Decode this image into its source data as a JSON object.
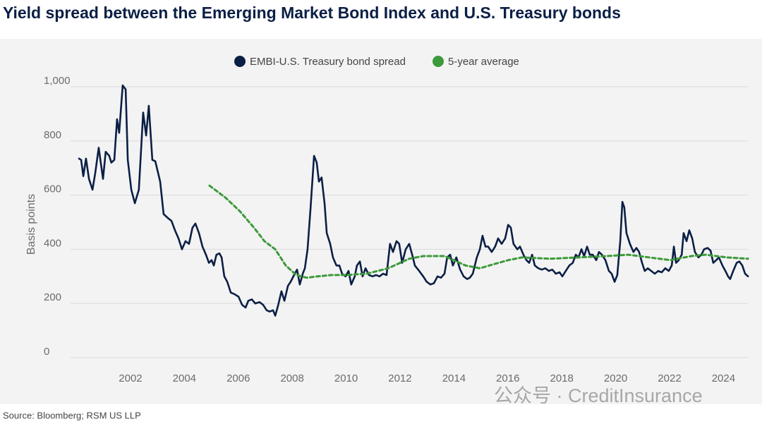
{
  "chart_data": {
    "type": "line",
    "title": "Yield spread between the Emerging Market Bond Index and U.S. Treasury bonds",
    "y_label": "Basis points",
    "source": "Source: Bloomberg; RSM US LLP",
    "watermark": "公众号 · CreditInsurance",
    "xlim": [
      1999.75,
      2025
    ],
    "xticks": [
      2002,
      2004,
      2006,
      2008,
      2010,
      2012,
      2014,
      2016,
      2018,
      2020,
      2022,
      2024
    ],
    "ylim": [
      0,
      1000
    ],
    "yticks": [
      0,
      200,
      400,
      600,
      800,
      {
        "value": 1000,
        "label": "1,000"
      }
    ],
    "grid": true,
    "legend": "top",
    "series": [
      {
        "name": "EMBI-U.S. Treasury bond spread",
        "color": "#0b1f45",
        "style": "solid",
        "x": [
          2000.09,
          2000.17,
          2000.25,
          2000.35,
          2000.46,
          2000.59,
          2000.69,
          2000.82,
          2000.98,
          2001.08,
          2001.21,
          2001.29,
          2001.4,
          2001.5,
          2001.58,
          2001.71,
          2001.82,
          2001.9,
          2002.03,
          2002.16,
          2002.31,
          2002.47,
          2002.58,
          2002.68,
          2002.81,
          2002.92,
          2003.1,
          2003.23,
          2003.39,
          2003.52,
          2003.65,
          2003.78,
          2003.91,
          2004.04,
          2004.17,
          2004.3,
          2004.41,
          2004.54,
          2004.67,
          2004.8,
          2004.91,
          2005.01,
          2005.09,
          2005.19,
          2005.3,
          2005.38,
          2005.48,
          2005.59,
          2005.72,
          2005.85,
          2006.01,
          2006.14,
          2006.27,
          2006.37,
          2006.5,
          2006.63,
          2006.79,
          2006.92,
          2007.05,
          2007.16,
          2007.29,
          2007.37,
          2007.47,
          2007.6,
          2007.71,
          2007.84,
          2007.94,
          2008.07,
          2008.18,
          2008.28,
          2008.39,
          2008.47,
          2008.57,
          2008.68,
          2008.81,
          2008.91,
          2008.99,
          2009.09,
          2009.2,
          2009.28,
          2009.41,
          2009.51,
          2009.64,
          2009.75,
          2009.85,
          2009.98,
          2010.09,
          2010.19,
          2010.32,
          2010.4,
          2010.51,
          2010.61,
          2010.72,
          2010.85,
          2010.98,
          2011.11,
          2011.24,
          2011.37,
          2011.5,
          2011.63,
          2011.74,
          2011.87,
          2011.97,
          2012.08,
          2012.21,
          2012.34,
          2012.45,
          2012.55,
          2012.71,
          2012.86,
          2012.99,
          2013.13,
          2013.26,
          2013.39,
          2013.52,
          2013.65,
          2013.75,
          2013.86,
          2013.96,
          2014.09,
          2014.23,
          2014.36,
          2014.49,
          2014.59,
          2014.7,
          2014.85,
          2014.96,
          2015.06,
          2015.17,
          2015.27,
          2015.4,
          2015.53,
          2015.64,
          2015.77,
          2015.9,
          2016.01,
          2016.11,
          2016.21,
          2016.35,
          2016.45,
          2016.58,
          2016.69,
          2016.79,
          2016.9,
          2017.0,
          2017.13,
          2017.26,
          2017.39,
          2017.52,
          2017.65,
          2017.78,
          2017.92,
          2018.02,
          2018.15,
          2018.28,
          2018.41,
          2018.52,
          2018.62,
          2018.73,
          2018.83,
          2018.94,
          2019.04,
          2019.15,
          2019.28,
          2019.38,
          2019.49,
          2019.62,
          2019.75,
          2019.85,
          2019.96,
          2020.06,
          2020.17,
          2020.25,
          2020.32,
          2020.4,
          2020.53,
          2020.66,
          2020.77,
          2020.87,
          2020.98,
          2021.08,
          2021.19,
          2021.32,
          2021.45,
          2021.58,
          2021.71,
          2021.84,
          2021.97,
          2022.08,
          2022.16,
          2022.24,
          2022.34,
          2022.45,
          2022.52,
          2022.63,
          2022.73,
          2022.84,
          2022.94,
          2023.07,
          2023.18,
          2023.28,
          2023.41,
          2023.52,
          2023.62,
          2023.73,
          2023.83,
          2023.96,
          2024.07,
          2024.17,
          2024.25,
          2024.36,
          2024.49,
          2024.59,
          2024.7,
          2024.8,
          2024.91
        ],
        "values": [
          735,
          730,
          670,
          735,
          660,
          620,
          680,
          775,
          660,
          760,
          745,
          720,
          730,
          880,
          830,
          1005,
          990,
          730,
          620,
          570,
          620,
          905,
          820,
          930,
          730,
          725,
          650,
          530,
          515,
          505,
          470,
          440,
          400,
          430,
          420,
          480,
          495,
          460,
          410,
          380,
          350,
          360,
          340,
          380,
          385,
          370,
          300,
          280,
          240,
          235,
          225,
          195,
          185,
          210,
          215,
          200,
          205,
          195,
          175,
          170,
          175,
          155,
          190,
          245,
          210,
          265,
          280,
          305,
          325,
          270,
          310,
          330,
          400,
          550,
          745,
          720,
          650,
          665,
          570,
          460,
          420,
          370,
          340,
          340,
          310,
          300,
          320,
          270,
          300,
          340,
          355,
          300,
          330,
          305,
          300,
          305,
          300,
          310,
          305,
          420,
          390,
          430,
          420,
          350,
          400,
          420,
          380,
          340,
          320,
          300,
          280,
          270,
          275,
          300,
          295,
          310,
          370,
          380,
          340,
          370,
          325,
          300,
          290,
          295,
          310,
          370,
          400,
          450,
          410,
          410,
          390,
          410,
          440,
          420,
          440,
          490,
          480,
          420,
          400,
          410,
          380,
          360,
          350,
          380,
          340,
          330,
          325,
          330,
          320,
          325,
          310,
          315,
          300,
          320,
          340,
          350,
          380,
          370,
          400,
          375,
          410,
          380,
          380,
          360,
          390,
          380,
          360,
          320,
          310,
          280,
          305,
          430,
          575,
          555,
          460,
          420,
          390,
          405,
          390,
          350,
          320,
          330,
          320,
          310,
          320,
          315,
          330,
          320,
          340,
          410,
          350,
          360,
          380,
          460,
          430,
          470,
          440,
          390,
          370,
          380,
          400,
          405,
          395,
          350,
          360,
          370,
          340,
          320,
          300,
          290,
          320,
          350,
          355,
          340,
          310,
          300
        ]
      },
      {
        "name": "5-year average",
        "color": "#3d9a3a",
        "style": "dashed",
        "x": [
          2004.93,
          2005.53,
          2006.06,
          2006.58,
          2006.97,
          2007.37,
          2007.76,
          2008.15,
          2008.54,
          2008.94,
          2009.46,
          2009.98,
          2010.77,
          2011.56,
          2012.34,
          2012.86,
          2013.65,
          2014.43,
          2014.96,
          2015.48,
          2016.01,
          2016.53,
          2017.58,
          2018.62,
          2019.67,
          2020.46,
          2021.24,
          2022.03,
          2022.81,
          2023.34,
          2024.12,
          2024.91
        ],
        "values": [
          635,
          590,
          540,
          480,
          430,
          400,
          340,
          305,
          295,
          300,
          305,
          305,
          310,
          330,
          365,
          375,
          375,
          340,
          330,
          345,
          360,
          370,
          365,
          370,
          375,
          380,
          370,
          360,
          375,
          380,
          370,
          365
        ]
      }
    ]
  }
}
